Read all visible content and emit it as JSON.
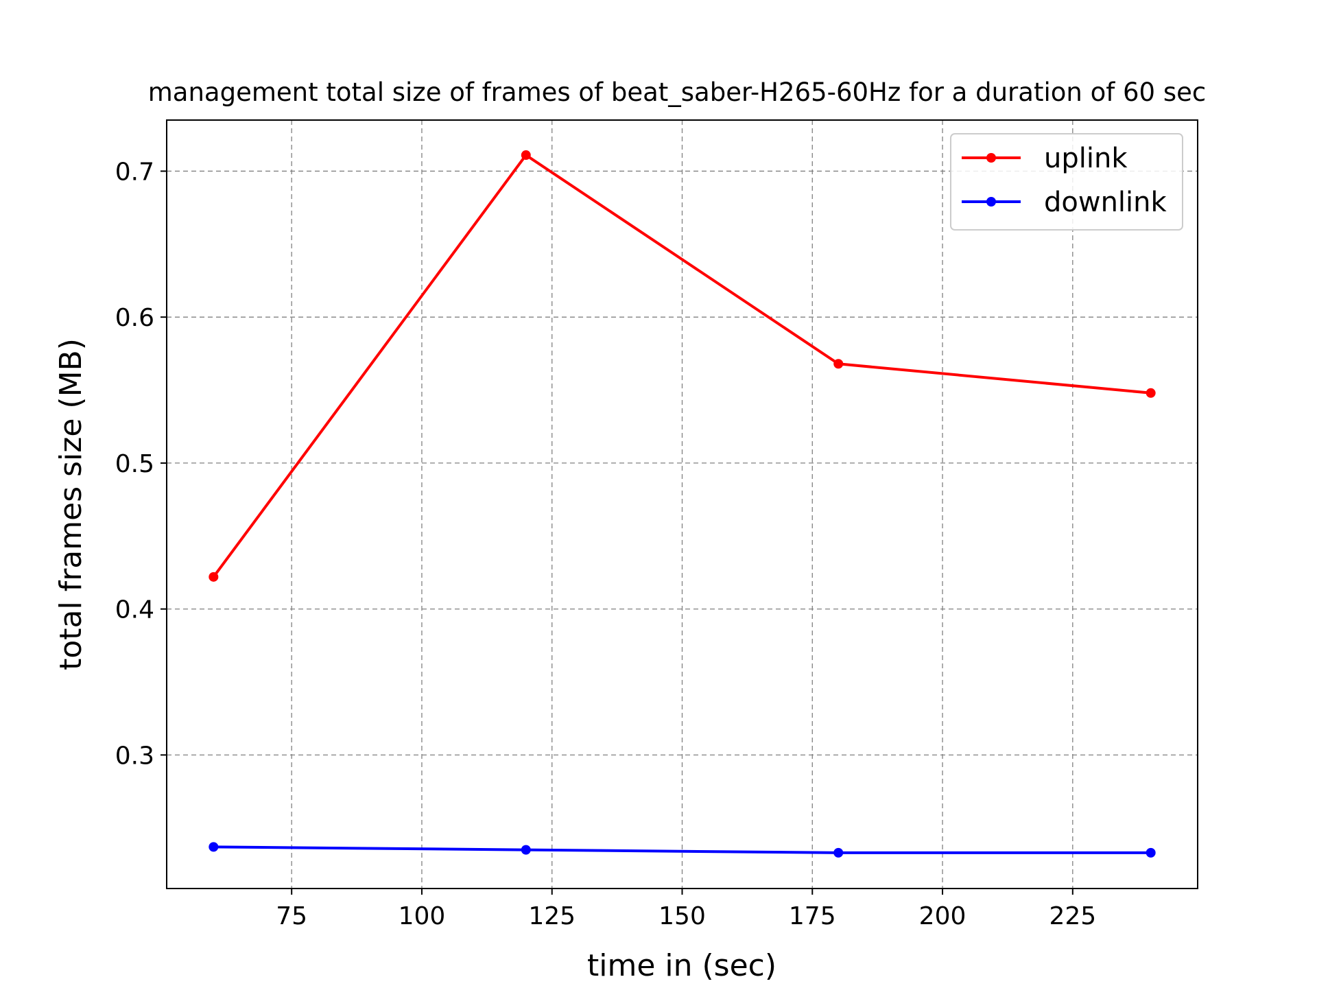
{
  "chart_data": {
    "type": "line",
    "title": "management total size of frames of beat_saber-H265-60Hz for a duration of 60 sec",
    "xlabel": "time in (sec)",
    "ylabel": "total frames size (MB)",
    "x": [
      60,
      120,
      180,
      240
    ],
    "xlim": [
      51,
      249
    ],
    "ylim": [
      0.2085,
      0.735
    ],
    "xticks": [
      75,
      100,
      125,
      150,
      175,
      200,
      225
    ],
    "yticks": [
      0.3,
      0.4,
      0.5,
      0.6,
      0.7
    ],
    "xtick_labels": [
      "75",
      "100",
      "125",
      "150",
      "175",
      "200",
      "225"
    ],
    "ytick_labels": [
      "0.3",
      "0.4",
      "0.5",
      "0.6",
      "0.7"
    ],
    "grid": true,
    "legend_position": "upper right",
    "series": [
      {
        "name": "uplink",
        "color": "#ff0000",
        "marker": "circle",
        "values": [
          0.422,
          0.711,
          0.568,
          0.548
        ]
      },
      {
        "name": "downlink",
        "color": "#0000ff",
        "marker": "circle",
        "values": [
          0.237,
          0.235,
          0.233,
          0.233
        ]
      }
    ]
  }
}
